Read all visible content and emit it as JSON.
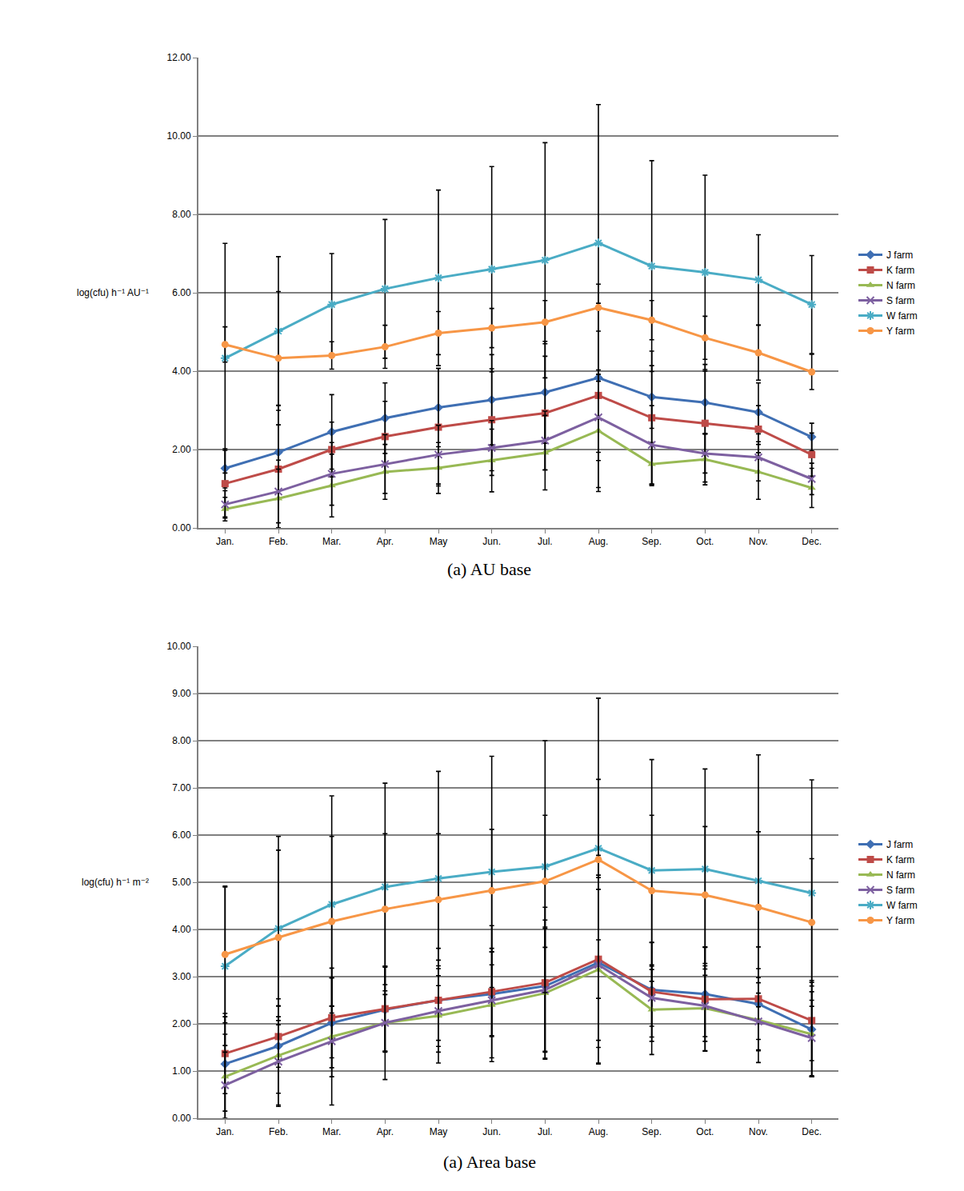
{
  "chart_data": [
    {
      "type": "line",
      "title": "(a) AU base",
      "y_label": "log(cfu) h⁻¹ AU⁻¹",
      "categories": [
        "Jan.",
        "Feb.",
        "Mar.",
        "Apr.",
        "May",
        "Jun.",
        "Jul.",
        "Aug.",
        "Sep.",
        "Oct.",
        "Nov.",
        "Dec."
      ],
      "ylim": [
        0,
        12
      ],
      "yticks": [
        {
          "value": 0,
          "label": "0.00"
        },
        {
          "value": 2,
          "label": "2.00"
        },
        {
          "value": 4,
          "label": "4.00"
        },
        {
          "value": 6,
          "label": "6.00"
        },
        {
          "value": 8,
          "label": "8.00"
        },
        {
          "value": 10,
          "label": "10.00"
        },
        {
          "value": 12,
          "label": "12.00"
        }
      ],
      "grid": true,
      "legend": "right",
      "series": [
        {
          "name": "J farm",
          "color": "#3f6fb3",
          "marker": "diamond",
          "values": [
            1.52,
            1.93,
            2.45,
            2.8,
            3.07,
            3.27,
            3.46,
            3.83,
            3.34,
            3.2,
            2.95,
            2.32
          ],
          "error": [
            0.5,
            1.2,
            0.95,
            0.9,
            1.0,
            1.15,
            1.3,
            1.9,
            0.8,
            0.8,
            0.75,
            0.35
          ]
        },
        {
          "name": "K farm",
          "color": "#be4b48",
          "marker": "square",
          "values": [
            1.13,
            1.5,
            2.0,
            2.33,
            2.57,
            2.76,
            2.93,
            3.38,
            2.81,
            2.67,
            2.52,
            1.87
          ],
          "error": [
            0.85,
            1.5,
            0.7,
            0.9,
            1.5,
            1.3,
            1.45,
            2.35,
            1.7,
            1.5,
            0.6,
            0.55
          ]
        },
        {
          "name": "N farm",
          "color": "#98b954",
          "marker": "triangle-up",
          "values": [
            0.48,
            0.75,
            1.08,
            1.43,
            1.53,
            1.72,
            1.92,
            2.48,
            1.63,
            1.75,
            1.43,
            1.02
          ],
          "error": [
            0.3,
            0.75,
            0.8,
            0.7,
            0.65,
            0.8,
            0.95,
            1.55,
            0.55,
            0.65,
            0.7,
            0.5
          ]
        },
        {
          "name": "S farm",
          "color": "#7d60a0",
          "marker": "x",
          "values": [
            0.6,
            0.93,
            1.38,
            1.63,
            1.87,
            2.04,
            2.23,
            2.82,
            2.12,
            1.9,
            1.8,
            1.25
          ],
          "error": [
            0.35,
            0.8,
            0.8,
            0.75,
            0.75,
            0.7,
            0.75,
            1.1,
            1.0,
            0.5,
            0.6,
            0.4
          ]
        },
        {
          "name": "W farm",
          "color": "#4aacc5",
          "marker": "asterisk",
          "values": [
            4.33,
            5.02,
            5.7,
            6.1,
            6.38,
            6.6,
            6.83,
            7.27,
            6.68,
            6.52,
            6.33,
            5.7
          ],
          "error": [
            2.93,
            1.9,
            1.3,
            1.77,
            2.24,
            2.62,
            3.0,
            3.53,
            2.69,
            2.48,
            1.15,
            1.25
          ]
        },
        {
          "name": "Y farm",
          "color": "#f79646",
          "marker": "circle",
          "values": [
            4.68,
            4.33,
            4.4,
            4.62,
            4.97,
            5.1,
            5.25,
            5.62,
            5.3,
            4.85,
            4.47,
            3.98
          ],
          "error": [
            0.45,
            1.7,
            0.35,
            0.55,
            0.55,
            0.5,
            0.55,
            0.6,
            0.5,
            0.55,
            0.7,
            0.45
          ]
        }
      ]
    },
    {
      "type": "line",
      "title": "(a) Area base",
      "y_label": "log(cfu) h⁻¹ m⁻²",
      "categories": [
        "Jan.",
        "Feb.",
        "Mar.",
        "Apr.",
        "May",
        "Jun.",
        "Jul.",
        "Aug.",
        "Sep.",
        "Oct.",
        "Nov.",
        "Dec."
      ],
      "ylim": [
        0,
        10
      ],
      "yticks": [
        {
          "value": 0,
          "label": "0.00"
        },
        {
          "value": 1,
          "label": "1.00"
        },
        {
          "value": 2,
          "label": "2.00"
        },
        {
          "value": 3,
          "label": "3.00"
        },
        {
          "value": 4,
          "label": "4.00"
        },
        {
          "value": 5,
          "label": "5.00"
        },
        {
          "value": 6,
          "label": "6.00"
        },
        {
          "value": 7,
          "label": "7.00"
        },
        {
          "value": 8,
          "label": "8.00"
        },
        {
          "value": 9,
          "label": "9.00"
        },
        {
          "value": 10,
          "label": "10.00"
        }
      ],
      "grid": true,
      "legend": "right",
      "series": [
        {
          "name": "J farm",
          "color": "#3f6fb3",
          "marker": "diamond",
          "values": [
            1.15,
            1.53,
            2.02,
            2.3,
            2.5,
            2.63,
            2.8,
            3.3,
            2.72,
            2.63,
            2.42,
            1.88
          ],
          "error": [
            1.0,
            1.0,
            0.95,
            0.9,
            0.85,
            0.9,
            1.4,
            1.8,
            1.0,
            1.0,
            0.75,
            1.0
          ]
        },
        {
          "name": "K farm",
          "color": "#be4b48",
          "marker": "square",
          "values": [
            1.37,
            1.73,
            2.13,
            2.32,
            2.5,
            2.68,
            2.87,
            3.37,
            2.68,
            2.52,
            2.53,
            2.07
          ],
          "error": [
            0.85,
            0.65,
            0.85,
            0.9,
            1.1,
            1.4,
            1.6,
            2.2,
            1.05,
            1.1,
            1.1,
            0.85
          ]
        },
        {
          "name": "N farm",
          "color": "#98b954",
          "marker": "triangle-up",
          "values": [
            0.88,
            1.33,
            1.73,
            2.02,
            2.17,
            2.4,
            2.65,
            3.15,
            2.3,
            2.33,
            2.08,
            1.78
          ],
          "error": [
            0.9,
            1.05,
            1.45,
            1.2,
            1.0,
            1.2,
            1.4,
            2.0,
            0.95,
            0.9,
            0.9,
            0.9
          ]
        },
        {
          "name": "S farm",
          "color": "#7d60a0",
          "marker": "x",
          "values": [
            0.7,
            1.2,
            1.63,
            2.02,
            2.27,
            2.5,
            2.72,
            3.25,
            2.55,
            2.38,
            2.05,
            1.7
          ],
          "error": [
            0.7,
            0.95,
            0.75,
            0.6,
            0.75,
            0.75,
            1.3,
            1.6,
            0.6,
            0.65,
            0.6,
            0.8
          ]
        },
        {
          "name": "W farm",
          "color": "#4aacc5",
          "marker": "asterisk",
          "values": [
            3.22,
            4.02,
            4.53,
            4.9,
            5.08,
            5.22,
            5.33,
            5.72,
            5.25,
            5.28,
            5.03,
            4.77
          ],
          "error": [
            1.68,
            1.95,
            2.3,
            2.2,
            2.27,
            2.45,
            2.67,
            3.18,
            2.35,
            2.12,
            2.67,
            2.4
          ]
        },
        {
          "name": "Y farm",
          "color": "#f79646",
          "marker": "circle",
          "values": [
            3.47,
            3.83,
            4.17,
            4.43,
            4.63,
            4.82,
            5.02,
            5.48,
            4.82,
            4.73,
            4.47,
            4.15
          ],
          "error": [
            1.45,
            1.85,
            1.8,
            1.6,
            1.4,
            1.3,
            1.4,
            1.7,
            1.6,
            1.45,
            1.6,
            1.35
          ]
        }
      ]
    }
  ]
}
